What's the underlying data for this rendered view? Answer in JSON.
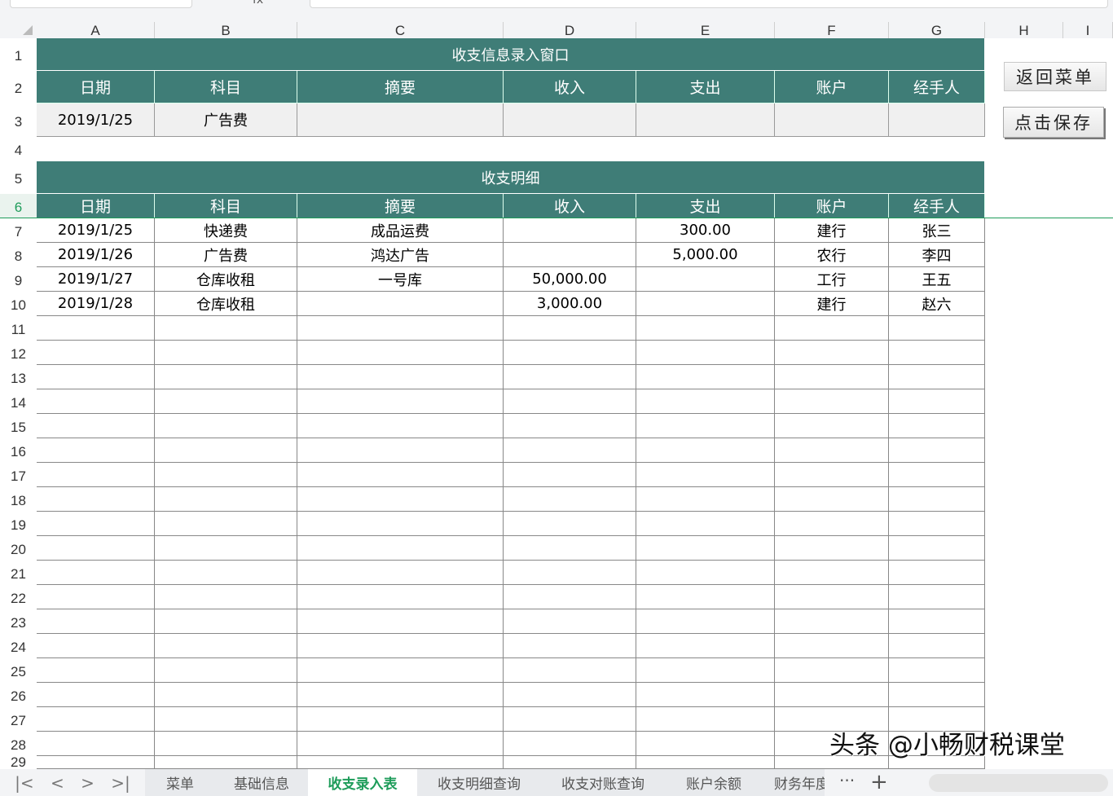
{
  "columns": [
    "A",
    "B",
    "C",
    "D",
    "E",
    "F",
    "G",
    "H",
    "I"
  ],
  "entry": {
    "title": "收支信息录入窗口",
    "headers": [
      "日期",
      "科目",
      "摘要",
      "收入",
      "支出",
      "账户",
      "经手人"
    ],
    "values": [
      "2019/1/25",
      "广告费",
      "",
      "",
      "",
      "",
      ""
    ]
  },
  "detail": {
    "title": "收支明细",
    "headers": [
      "日期",
      "科目",
      "摘要",
      "收入",
      "支出",
      "账户",
      "经手人"
    ],
    "rows": [
      [
        "2019/1/25",
        "快递费",
        "成品运费",
        "",
        "300.00",
        "建行",
        "张三"
      ],
      [
        "2019/1/26",
        "广告费",
        "鸿达广告",
        "",
        "5,000.00",
        "农行",
        "李四"
      ],
      [
        "2019/1/27",
        "仓库收租",
        "一号库",
        "50,000.00",
        "",
        "工行",
        "王五"
      ],
      [
        "2019/1/28",
        "仓库收租",
        "",
        "3,000.00",
        "",
        "建行",
        "赵六"
      ]
    ]
  },
  "buttons": {
    "back": "返回菜单",
    "save": "点击保存"
  },
  "sheet_tabs": [
    {
      "label": "菜单",
      "active": false
    },
    {
      "label": "基础信息",
      "active": false
    },
    {
      "label": "收支录入表",
      "active": true
    },
    {
      "label": "收支明细查询",
      "active": false
    },
    {
      "label": "收支对账查询",
      "active": false
    },
    {
      "label": "账户余额",
      "active": false
    },
    {
      "label": "财务年度",
      "active": false
    }
  ],
  "nav": {
    "first": "|<",
    "prev": "<",
    "next": ">",
    "last": ">|",
    "more": "···",
    "add": "+"
  },
  "watermark": "头条 @小畅财税课堂",
  "colors": {
    "header_bg": "#3f7d77",
    "active_tab": "#1e9c5a",
    "input_bg": "#f0f0f0"
  }
}
